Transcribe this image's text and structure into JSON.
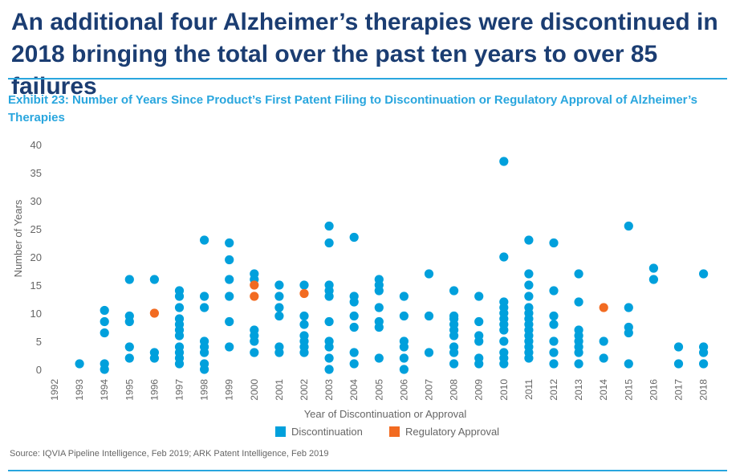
{
  "header": {
    "title": "An additional four Alzheimer’s therapies were discontinued in 2018 bringing the total over the past ten years to over 85 failures",
    "exhibit": "Exhibit 23: Number of Years Since Product’s First Patent Filing to Discontinuation or Regulatory Approval of Alzheimer’s Therapies"
  },
  "footer": {
    "source": "Source: IQVIA Pipeline Intelligence, Feb 2019; ARK Patent Intelligence, Feb 2019"
  },
  "colors": {
    "discontinuation": "#00a0dc",
    "approval": "#f26b21",
    "title": "#1b3d72",
    "accent": "#29a6de"
  },
  "chart_data": {
    "type": "scatter",
    "title": "",
    "xlabel": "Year of Discontinuation or Approval",
    "ylabel": "Number of Years",
    "categories": [
      "1992",
      "1993",
      "1994",
      "1995",
      "1996",
      "1997",
      "1998",
      "1999",
      "2000",
      "2001",
      "2002",
      "2003",
      "2004",
      "2005",
      "2006",
      "2007",
      "2008",
      "2009",
      "2010",
      "2011",
      "2012",
      "2013",
      "2014",
      "2015",
      "2016",
      "2017",
      "2018"
    ],
    "ylim": [
      0,
      40
    ],
    "yticks": [
      0,
      5,
      10,
      15,
      20,
      25,
      30,
      35,
      40
    ],
    "grid": false,
    "legend_position": "bottom",
    "series": [
      {
        "name": "Discontinuation",
        "color": "#00a0dc",
        "points": [
          [
            "1993",
            1
          ],
          [
            "1994",
            0
          ],
          [
            "1994",
            1
          ],
          [
            "1994",
            6.5
          ],
          [
            "1994",
            8.5
          ],
          [
            "1994",
            10.5
          ],
          [
            "1995",
            2
          ],
          [
            "1995",
            4
          ],
          [
            "1995",
            8.5
          ],
          [
            "1995",
            9.5
          ],
          [
            "1995",
            16
          ],
          [
            "1996",
            2
          ],
          [
            "1996",
            3
          ],
          [
            "1996",
            16
          ],
          [
            "1997",
            1
          ],
          [
            "1997",
            2
          ],
          [
            "1997",
            3
          ],
          [
            "1997",
            4
          ],
          [
            "1997",
            6
          ],
          [
            "1997",
            7
          ],
          [
            "1997",
            8
          ],
          [
            "1997",
            9
          ],
          [
            "1997",
            11
          ],
          [
            "1997",
            13
          ],
          [
            "1997",
            14
          ],
          [
            "1998",
            0
          ],
          [
            "1998",
            1
          ],
          [
            "1998",
            3
          ],
          [
            "1998",
            4
          ],
          [
            "1998",
            5
          ],
          [
            "1998",
            11
          ],
          [
            "1998",
            13
          ],
          [
            "1998",
            23
          ],
          [
            "1999",
            4
          ],
          [
            "1999",
            8.5
          ],
          [
            "1999",
            13
          ],
          [
            "1999",
            16
          ],
          [
            "1999",
            19.5
          ],
          [
            "1999",
            22.5
          ],
          [
            "2000",
            3
          ],
          [
            "2000",
            5
          ],
          [
            "2000",
            6
          ],
          [
            "2000",
            7
          ],
          [
            "2000",
            16
          ],
          [
            "2000",
            17
          ],
          [
            "2001",
            3
          ],
          [
            "2001",
            4
          ],
          [
            "2001",
            9.5
          ],
          [
            "2001",
            11
          ],
          [
            "2001",
            13
          ],
          [
            "2001",
            15
          ],
          [
            "2002",
            3
          ],
          [
            "2002",
            4
          ],
          [
            "2002",
            5
          ],
          [
            "2002",
            6
          ],
          [
            "2002",
            8
          ],
          [
            "2002",
            9.5
          ],
          [
            "2002",
            15
          ],
          [
            "2003",
            0
          ],
          [
            "2003",
            2
          ],
          [
            "2003",
            4
          ],
          [
            "2003",
            5
          ],
          [
            "2003",
            8.5
          ],
          [
            "2003",
            13
          ],
          [
            "2003",
            14
          ],
          [
            "2003",
            15
          ],
          [
            "2003",
            22.5
          ],
          [
            "2003",
            25.5
          ],
          [
            "2004",
            1
          ],
          [
            "2004",
            3
          ],
          [
            "2004",
            7.5
          ],
          [
            "2004",
            9.5
          ],
          [
            "2004",
            12
          ],
          [
            "2004",
            13
          ],
          [
            "2004",
            23.5
          ],
          [
            "2005",
            2
          ],
          [
            "2005",
            7.5
          ],
          [
            "2005",
            8.5
          ],
          [
            "2005",
            11
          ],
          [
            "2005",
            14
          ],
          [
            "2005",
            15
          ],
          [
            "2005",
            16
          ],
          [
            "2006",
            0
          ],
          [
            "2006",
            2
          ],
          [
            "2006",
            4
          ],
          [
            "2006",
            5
          ],
          [
            "2006",
            9.5
          ],
          [
            "2006",
            13
          ],
          [
            "2007",
            3
          ],
          [
            "2007",
            9.5
          ],
          [
            "2007",
            17
          ],
          [
            "2008",
            1
          ],
          [
            "2008",
            3
          ],
          [
            "2008",
            4
          ],
          [
            "2008",
            6
          ],
          [
            "2008",
            7
          ],
          [
            "2008",
            8
          ],
          [
            "2008",
            9
          ],
          [
            "2008",
            9.5
          ],
          [
            "2008",
            14
          ],
          [
            "2009",
            1
          ],
          [
            "2009",
            2
          ],
          [
            "2009",
            5
          ],
          [
            "2009",
            6
          ],
          [
            "2009",
            8.5
          ],
          [
            "2009",
            13
          ],
          [
            "2010",
            1
          ],
          [
            "2010",
            2
          ],
          [
            "2010",
            3
          ],
          [
            "2010",
            5
          ],
          [
            "2010",
            7
          ],
          [
            "2010",
            8
          ],
          [
            "2010",
            9
          ],
          [
            "2010",
            10
          ],
          [
            "2010",
            11
          ],
          [
            "2010",
            12
          ],
          [
            "2010",
            20
          ],
          [
            "2010",
            37
          ],
          [
            "2011",
            2
          ],
          [
            "2011",
            3
          ],
          [
            "2011",
            4
          ],
          [
            "2011",
            5
          ],
          [
            "2011",
            6
          ],
          [
            "2011",
            7
          ],
          [
            "2011",
            8
          ],
          [
            "2011",
            9
          ],
          [
            "2011",
            10
          ],
          [
            "2011",
            11
          ],
          [
            "2011",
            13
          ],
          [
            "2011",
            15
          ],
          [
            "2011",
            17
          ],
          [
            "2011",
            23
          ],
          [
            "2012",
            1
          ],
          [
            "2012",
            3
          ],
          [
            "2012",
            5
          ],
          [
            "2012",
            8
          ],
          [
            "2012",
            9.5
          ],
          [
            "2012",
            14
          ],
          [
            "2012",
            22.5
          ],
          [
            "2013",
            1
          ],
          [
            "2013",
            3
          ],
          [
            "2013",
            4
          ],
          [
            "2013",
            5
          ],
          [
            "2013",
            6
          ],
          [
            "2013",
            7
          ],
          [
            "2013",
            12
          ],
          [
            "2013",
            17
          ],
          [
            "2014",
            2
          ],
          [
            "2014",
            5
          ],
          [
            "2015",
            1
          ],
          [
            "2015",
            6.5
          ],
          [
            "2015",
            7.5
          ],
          [
            "2015",
            11
          ],
          [
            "2015",
            25.5
          ],
          [
            "2016",
            16
          ],
          [
            "2016",
            18
          ],
          [
            "2017",
            1
          ],
          [
            "2017",
            4
          ],
          [
            "2018",
            1
          ],
          [
            "2018",
            3
          ],
          [
            "2018",
            4
          ],
          [
            "2018",
            17
          ]
        ]
      },
      {
        "name": "Regulatory Approval",
        "color": "#f26b21",
        "points": [
          [
            "1996",
            10
          ],
          [
            "2000",
            13
          ],
          [
            "2000",
            15
          ],
          [
            "2002",
            13.5
          ],
          [
            "2014",
            11
          ]
        ]
      }
    ]
  }
}
